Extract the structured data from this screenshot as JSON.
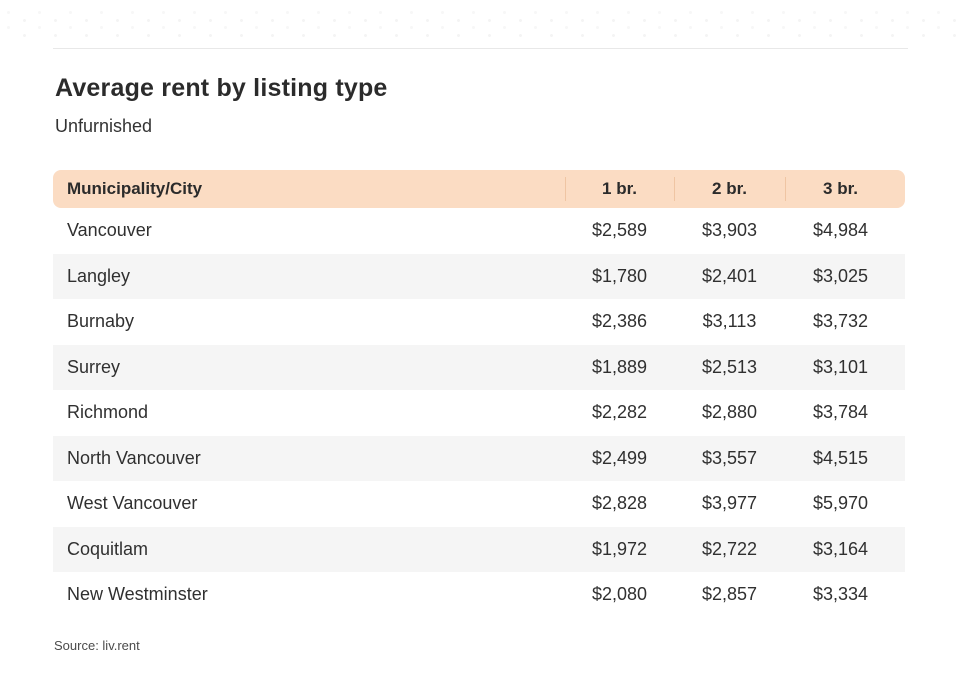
{
  "header": {
    "title": "Average rent by listing type",
    "subtitle": "Unfurnished"
  },
  "table": {
    "columns": [
      "Municipality/City",
      "1 br.",
      "2 br.",
      "3 br."
    ],
    "rows": [
      {
        "municipality": "Vancouver",
        "values": [
          "$2,589",
          "$3,903",
          "$4,984"
        ]
      },
      {
        "municipality": "Langley",
        "values": [
          "$1,780",
          "$2,401",
          "$3,025"
        ]
      },
      {
        "municipality": "Burnaby",
        "values": [
          "$2,386",
          "$3,113",
          "$3,732"
        ]
      },
      {
        "municipality": "Surrey",
        "values": [
          "$1,889",
          "$2,513",
          "$3,101"
        ]
      },
      {
        "municipality": "Richmond",
        "values": [
          "$2,282",
          "$2,880",
          "$3,784"
        ]
      },
      {
        "municipality": "North Vancouver",
        "values": [
          "$2,499",
          "$3,557",
          "$4,515"
        ]
      },
      {
        "municipality": "West Vancouver",
        "values": [
          "$2,828",
          "$3,977",
          "$5,970"
        ]
      },
      {
        "municipality": "Coquitlam",
        "values": [
          "$1,972",
          "$2,722",
          "$3,164"
        ]
      },
      {
        "municipality": "New Westminster",
        "values": [
          "$2,080",
          "$2,857",
          "$3,334"
        ]
      }
    ]
  },
  "footer": {
    "source": "Source: liv.rent"
  },
  "colors": {
    "header_bg": "#fbdcc3",
    "header_divider": "#efc5a3",
    "row_alt_bg": "#f5f5f5",
    "text_dark": "#2b2b2b",
    "text_body": "#303030",
    "divider": "#e8e8e8"
  },
  "chart_data": {
    "type": "table",
    "title": "Average rent by listing type",
    "subtitle": "Unfurnished",
    "categories": [
      "Vancouver",
      "Langley",
      "Burnaby",
      "Surrey",
      "Richmond",
      "North Vancouver",
      "West Vancouver",
      "Coquitlam",
      "New Westminster"
    ],
    "series": [
      {
        "name": "1 br.",
        "values": [
          2589,
          1780,
          2386,
          1889,
          2282,
          2499,
          2828,
          1972,
          2080
        ]
      },
      {
        "name": "2 br.",
        "values": [
          3903,
          2401,
          3113,
          2513,
          2880,
          3557,
          3977,
          2722,
          2857
        ]
      },
      {
        "name": "3 br.",
        "values": [
          4984,
          3025,
          3732,
          3101,
          3784,
          4515,
          5970,
          3164,
          3334
        ]
      }
    ],
    "currency": "CAD $",
    "source": "Source: liv.rent"
  }
}
